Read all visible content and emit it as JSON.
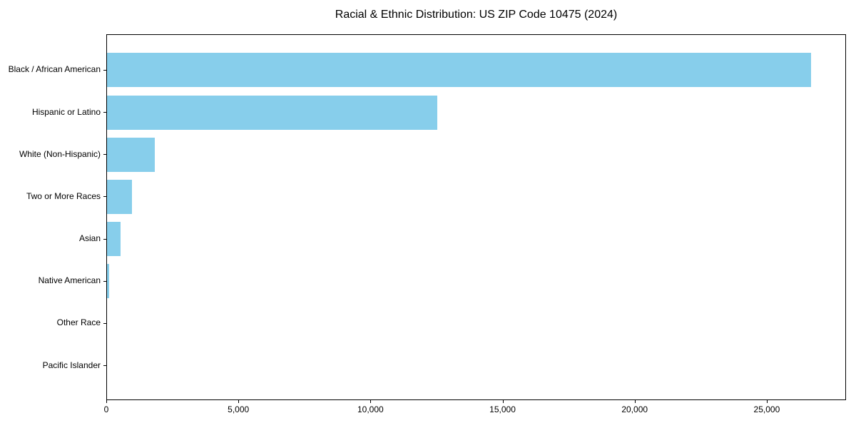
{
  "chart_data": {
    "type": "bar",
    "orientation": "horizontal",
    "title": "Racial & Ethnic Distribution: US ZIP Code 10475 (2024)",
    "categories": [
      "Black / African American",
      "Hispanic or Latino",
      "White (Non-Hispanic)",
      "Two or More Races",
      "Asian",
      "Native American",
      "Other Race",
      "Pacific Islander"
    ],
    "values": [
      26650,
      12500,
      1810,
      950,
      510,
      90,
      0,
      0
    ],
    "xlabel": "",
    "ylabel": "",
    "xlim": [
      0,
      28000
    ],
    "x_ticks": [
      0,
      5000,
      10000,
      15000,
      20000,
      25000
    ],
    "x_tick_labels": [
      "0",
      "5,000",
      "10,000",
      "15,000",
      "20,000",
      "25,000"
    ],
    "grid": false,
    "legend": null,
    "colors": {
      "bar": "#87CEEB",
      "text": "#000000",
      "spine": "#000000",
      "background": "#ffffff"
    }
  }
}
